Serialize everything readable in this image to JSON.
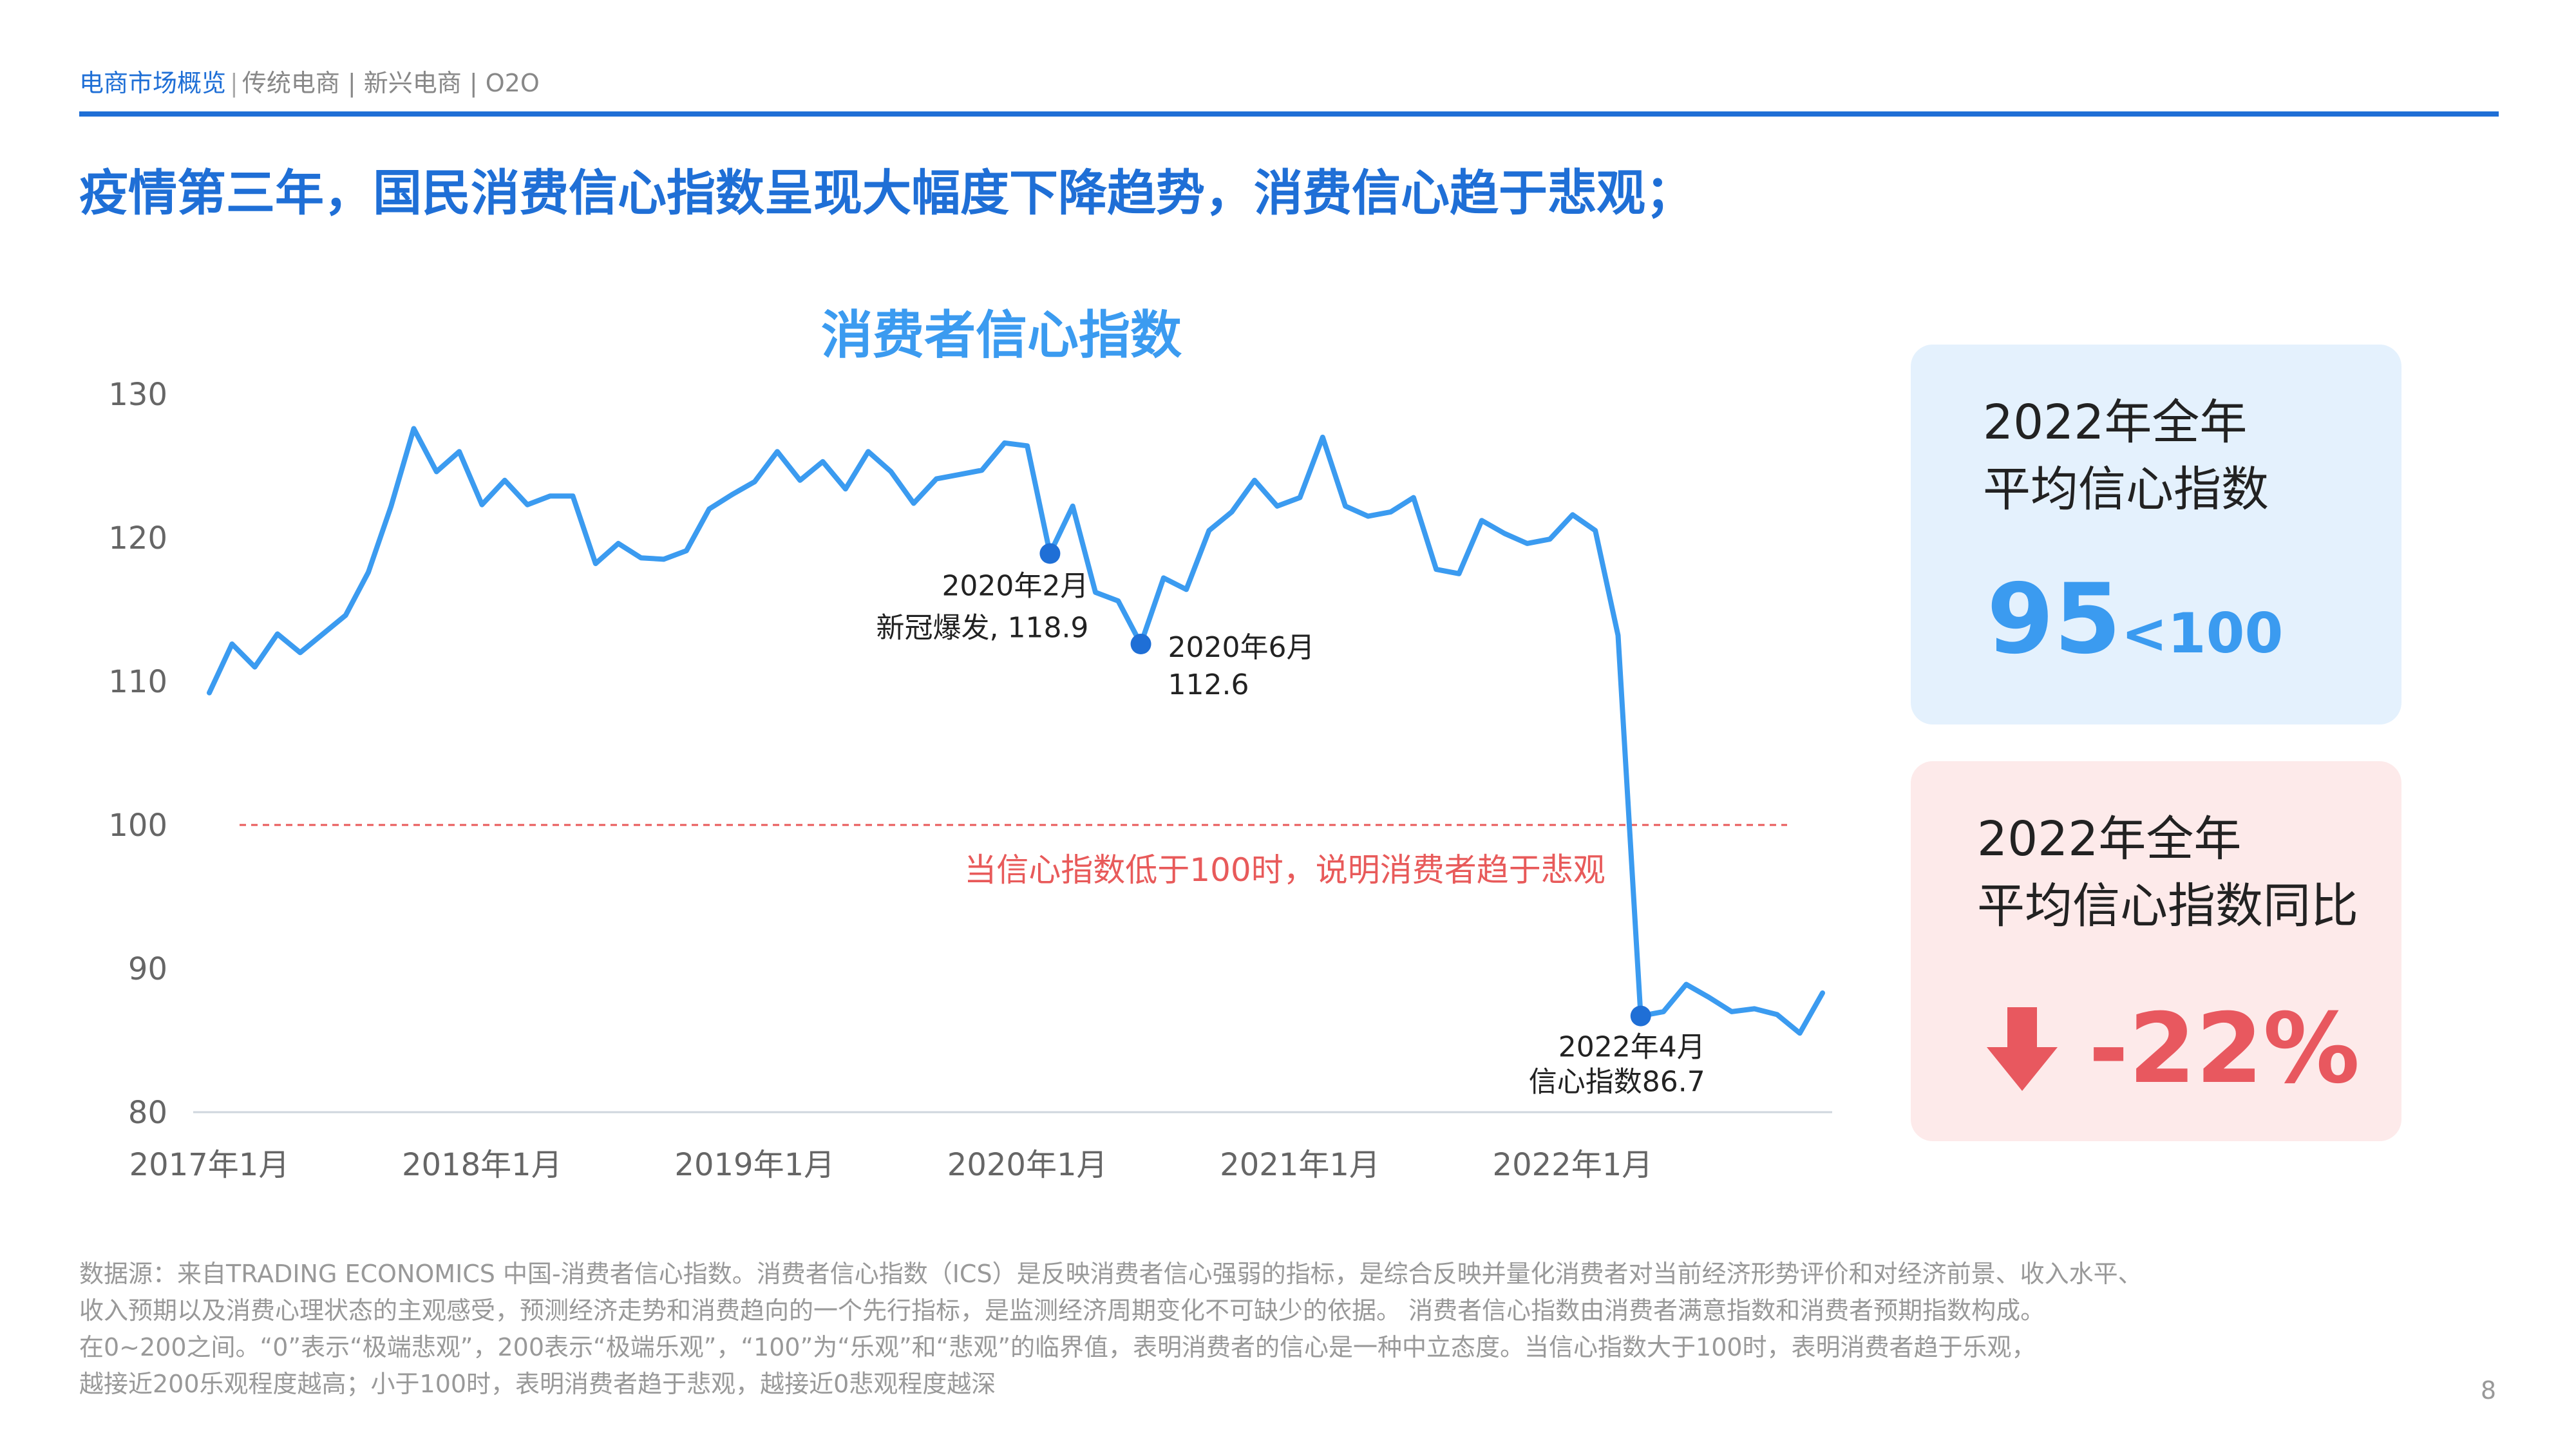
{
  "breadcrumb": {
    "active": "电商市场概览",
    "rest": "传统电商 | 新兴电商 | O2O"
  },
  "headline": "疫情第三年，国民消费信心指数呈现大幅度下降趋势，消费信心趋于悲观；",
  "card_avg": {
    "line1": "2022年全年",
    "line2": "平均信心指数",
    "value": "95",
    "compare": "<100"
  },
  "card_yoy": {
    "line1": "2022年全年",
    "line2": "平均信心指数同比",
    "value": "-22%",
    "icon": "arrow-down-icon"
  },
  "colors": {
    "accent": "#1f6fd6",
    "line": "#3b9bf0",
    "negative": "#e8585f",
    "threshold": "#e85a5a"
  },
  "footnote": [
    "数据源：来自TRADING ECONOMICS 中国-消费者信心指数。消费者信心指数（ICS）是反映消费者信心强弱的指标，是综合反映并量化消费者对当前经济形势评价和对经济前景、收入水平、",
    "收入预期以及消费心理状态的主观感受，预测经济走势和消费趋向的一个先行指标，是监测经济周期变化不可缺少的依据。 消费者信心指数由消费者满意指数和消费者预期指数构成。",
    "在0~200之间。“0”表示“极端悲观”，200表示“极端乐观”，“100”为“乐观”和“悲观”的临界值，表明消费者的信心是一种中立态度。当信心指数大于100时，表明消费者趋于乐观，",
    "越接近200乐观程度越高；小于100时，表明消费者趋于悲观，越接近0悲观程度越深"
  ],
  "page_number": "8",
  "chart_data": {
    "type": "line",
    "title": "消费者信心指数",
    "xlabel": "",
    "ylabel": "",
    "ylim": [
      80,
      130
    ],
    "yticks": [
      130,
      120,
      110,
      100,
      90,
      80
    ],
    "xtick_labels": [
      "2017年1月",
      "2018年1月",
      "2019年1月",
      "2020年1月",
      "2021年1月",
      "2022年1月"
    ],
    "xtick_index": [
      0,
      12,
      24,
      36,
      48,
      60
    ],
    "grid": false,
    "threshold": {
      "value": 100,
      "label": "当信心指数低于100时，说明消费者趋于悲观"
    },
    "series": [
      {
        "values": [
          109.2,
          112.6,
          111.0,
          113.3,
          112.0,
          113.3,
          114.6,
          117.6,
          122.2,
          127.6,
          124.6,
          126.0,
          122.3,
          124.0,
          122.3,
          122.9,
          122.9,
          118.2,
          119.6,
          118.6,
          118.5,
          119.1,
          122.0,
          123.0,
          123.9,
          126.0,
          124.0,
          125.3,
          123.4,
          126.0,
          124.6,
          122.4,
          124.1,
          124.4,
          124.7,
          126.6,
          126.4,
          118.9,
          122.2,
          116.2,
          115.6,
          112.6,
          117.2,
          116.4,
          120.5,
          121.8,
          124.0,
          122.2,
          122.8,
          127.0,
          122.2,
          121.5,
          121.8,
          122.8,
          117.8,
          117.5,
          121.2,
          120.3,
          119.6,
          119.9,
          121.6,
          120.5,
          113.2,
          86.7,
          87.0,
          88.9,
          88.0,
          87.0,
          87.2,
          86.8,
          85.5,
          88.3
        ]
      }
    ],
    "annotations": [
      {
        "index": 37,
        "value": 118.9,
        "line1": "2020年2月",
        "line2": "新冠爆发, 118.9"
      },
      {
        "index": 41,
        "value": 112.6,
        "line1": "2020年6月",
        "line2": "112.6"
      },
      {
        "index": 63,
        "value": 86.7,
        "line1": "2022年4月",
        "line2": "信心指数86.7"
      }
    ]
  }
}
